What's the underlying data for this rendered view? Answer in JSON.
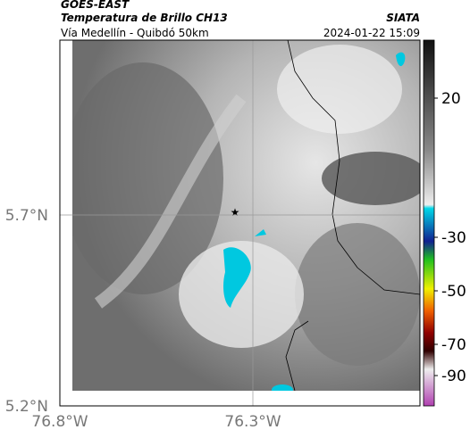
{
  "header": {
    "satellite": "GOES-EAST",
    "product": "Temperatura de Brillo CH13",
    "source": "SIATA",
    "route": "Vía Medellín - Quibdó 50km",
    "datetime": "2024-01-22 15:09"
  },
  "map": {
    "lat_labels": [
      "5.7°N",
      "5.2°N"
    ],
    "lon_labels": [
      "76.8°W",
      "76.3°W"
    ]
  },
  "colorbar": {
    "ticks": [
      20,
      -30,
      -50,
      -70,
      -90
    ]
  }
}
